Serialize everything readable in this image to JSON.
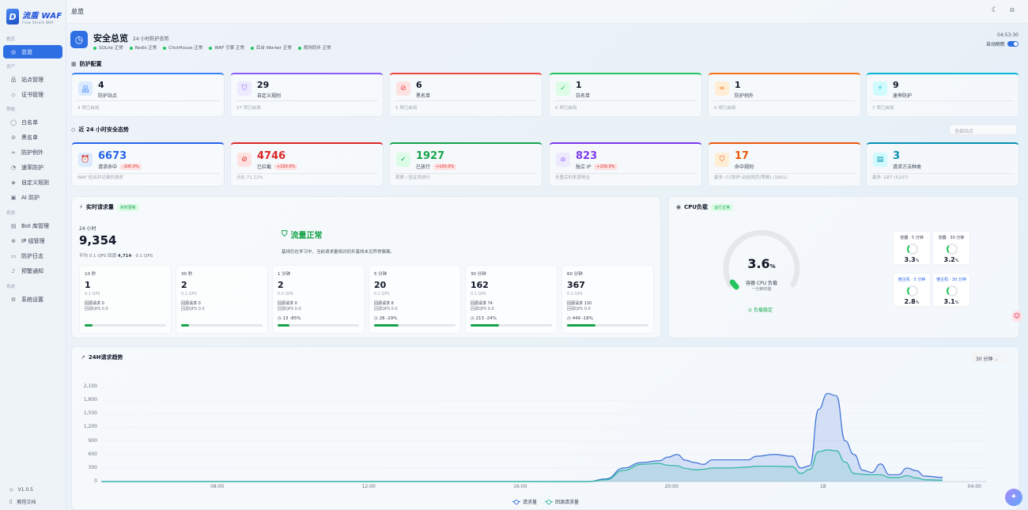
{
  "app": {
    "logo_title": "流盾 WAF",
    "logo_sub": "Flow Shield WAF",
    "version": "V1.0.5",
    "docs": "教程文档"
  },
  "nav": {
    "sections": [
      {
        "label": "概览"
      },
      {
        "label": "资产"
      },
      {
        "label": "策略"
      },
      {
        "label": "观测"
      },
      {
        "label": "系统"
      }
    ],
    "items": [
      {
        "label": "总览",
        "icon": "grid-icon"
      },
      {
        "label": "站点管理",
        "icon": "sitemap-icon"
      },
      {
        "label": "证书管理",
        "icon": "shield-icon"
      },
      {
        "label": "白名单",
        "icon": "check-circle-icon"
      },
      {
        "label": "黑名单",
        "icon": "ban-icon"
      },
      {
        "label": "防护例外",
        "icon": "link-icon"
      },
      {
        "label": "速率防护",
        "icon": "gauge-icon"
      },
      {
        "label": "自定义规则",
        "icon": "shield-check-icon"
      },
      {
        "label": "AI 防护",
        "icon": "robot-icon"
      },
      {
        "label": "Bot 库管理",
        "icon": "database-icon"
      },
      {
        "label": "IP 组管理",
        "icon": "globe-icon"
      },
      {
        "label": "防护日志",
        "icon": "file-icon"
      },
      {
        "label": "预警通知",
        "icon": "bell-icon"
      },
      {
        "label": "系统设置",
        "icon": "gear-icon"
      }
    ]
  },
  "topbar": {
    "breadcrumb": "总览"
  },
  "header": {
    "title": "安全总览",
    "subtitle": "24 小时防护态势",
    "statuses": [
      "SQLite 正常",
      "Redis 正常",
      "ClickHouse 正常",
      "WAF 引擎 正常",
      "后台 Worker 正常",
      "规则同步 正常"
    ],
    "clock": "04:53:30",
    "auto_refresh": "自动刷新"
  },
  "config_section": {
    "title": "防护配置",
    "cards": [
      {
        "value": "4",
        "label": "防护站点",
        "foot": "4 项已启用",
        "color": "#3b82f6",
        "bg": "#dbeafe",
        "icon": "sitemap-icon"
      },
      {
        "value": "29",
        "label": "自定义规则",
        "foot": "27 项已启用",
        "color": "#8b5cf6",
        "bg": "#ede9fe",
        "icon": "shield-check-icon"
      },
      {
        "value": "6",
        "label": "黑名单",
        "foot": "5 项已启用",
        "color": "#ef4444",
        "bg": "#fee2e2",
        "icon": "ban-icon"
      },
      {
        "value": "1",
        "label": "白名单",
        "foot": "0 项已启用",
        "color": "#22c55e",
        "bg": "#dcfce7",
        "icon": "check-circle-icon"
      },
      {
        "value": "1",
        "label": "防护例外",
        "foot": "0 项已启用",
        "color": "#f97316",
        "bg": "#ffedd5",
        "icon": "link-icon"
      },
      {
        "value": "9",
        "label": "速率防护",
        "foot": "7 项已启用",
        "color": "#06b6d4",
        "bg": "#cffafe",
        "icon": "bolt-icon"
      }
    ]
  },
  "trend_section": {
    "title": "近 24 小时安全态势",
    "select_placeholder": "全部站点",
    "cards": [
      {
        "value": "6673",
        "label": "请求命中",
        "badge": "-100.0%",
        "foot": "WAF 检出并记录的请求",
        "color": "#2563eb",
        "bg": "#dbeafe",
        "icon": "alarm-icon"
      },
      {
        "value": "4746",
        "label": "已拦截",
        "badge": "+100.0%",
        "foot": "占比 71.12%",
        "color": "#dc2626",
        "bg": "#fee2e2",
        "icon": "ban-icon"
      },
      {
        "value": "1927",
        "label": "已放行",
        "badge": "+100.0%",
        "foot": "观察 / 验证类放行",
        "color": "#16a34a",
        "bg": "#dcfce7",
        "icon": "check-circle-icon"
      },
      {
        "value": "823",
        "label": "独立 IP",
        "badge": "+100.0%",
        "foot": "去重后的来源地址",
        "color": "#7c3aed",
        "bg": "#ede9fe",
        "icon": "user-icon"
      },
      {
        "value": "17",
        "label": "命中规则",
        "badge": "",
        "foot": "最多: CC防护-动态网页(策略) (1801)",
        "color": "#ea580c",
        "bg": "#ffedd5",
        "icon": "shield-icon"
      },
      {
        "value": "3",
        "label": "请求方法种类",
        "badge": "",
        "foot": "最多: GET (5207)",
        "color": "#0891b2",
        "bg": "#cffafe",
        "icon": "doc-icon"
      }
    ]
  },
  "realtime": {
    "title": "实时请求量",
    "tag": "实时更新",
    "period": "24 小时",
    "total": "9,354",
    "qps": "平均 0.1 QPS",
    "origin_label": "回源",
    "origin_value": "4,714",
    "origin_qps": "· 0.1 QPS",
    "status_title": "流量正常",
    "status_desc": "基线仍在学习中，当前请求量相对初步基线未见异常偏离。",
    "windows": [
      {
        "label": "10 秒",
        "value": "1",
        "qps": "0.1 QPS",
        "backend": "回源请求 0",
        "backend_qps": "回源QPS 0.0",
        "delta": "",
        "fill": 0.1
      },
      {
        "label": "30 秒",
        "value": "2",
        "qps": "0.1 QPS",
        "backend": "回源请求 0",
        "backend_qps": "回源QPS 0.0",
        "delta": "",
        "fill": 0.1
      },
      {
        "label": "1 分钟",
        "value": "2",
        "qps": "0.0 QPS",
        "backend": "回源请求 0",
        "backend_qps": "回源QPS 0.0",
        "delta": "13 -85%",
        "fill": 0.15
      },
      {
        "label": "5 分钟",
        "value": "20",
        "qps": "0.1 QPS",
        "backend": "回源请求 8",
        "backend_qps": "回源QPS 0.0",
        "delta": "28 -29%",
        "fill": 0.3
      },
      {
        "label": "30 分钟",
        "value": "162",
        "qps": "0.1 QPS",
        "backend": "回源请求 74",
        "backend_qps": "回源QPS 0.0",
        "delta": "213 -24%",
        "fill": 0.35
      },
      {
        "label": "60 分钟",
        "value": "367",
        "qps": "0.1 QPS",
        "backend": "回源请求 130",
        "backend_qps": "回源QPS 0.0",
        "delta": "449 -18%",
        "fill": 0.35
      }
    ]
  },
  "cpu": {
    "title": "CPU负载",
    "tag": "运行正常",
    "value": "3.6",
    "unit": "%",
    "label": "容器 CPU 负载",
    "sublabel": "一分钟均值",
    "status": "负载稳定",
    "percent": 3.6,
    "minis": [
      {
        "label": "容器 · 5 分钟",
        "value": "3.3",
        "unit": "%",
        "blue": false
      },
      {
        "label": "容器 · 30 分钟",
        "value": "3.2",
        "unit": "%",
        "blue": false
      },
      {
        "label": "宿主机 · 5 分钟",
        "value": "2.8",
        "unit": "%",
        "blue": true
      },
      {
        "label": "宿主机 · 30 分钟",
        "value": "3.1",
        "unit": "%",
        "blue": true
      }
    ]
  },
  "chart_section": {
    "title": "24H请求趋势",
    "interval": "30 分钟"
  },
  "chart_data": {
    "type": "area",
    "title": "24H请求趋势",
    "y_ticks": [
      "2,100",
      "1,800",
      "1,500",
      "1,200",
      "900",
      "600",
      "300",
      "0"
    ],
    "ylim": [
      0,
      2100
    ],
    "x_ticks": [
      "08:00",
      "12:00",
      "16:00",
      "20:00",
      "18",
      "04:00"
    ],
    "grid": true,
    "legend_placement": "bottom-center",
    "series": [
      {
        "name": "请求量",
        "color": "#3b6fd6",
        "points": [
          [
            0,
            0
          ],
          [
            20,
            0
          ],
          [
            40,
            0
          ],
          [
            55,
            0
          ],
          [
            57,
            60
          ],
          [
            59,
            300
          ],
          [
            61,
            420
          ],
          [
            63,
            460
          ],
          [
            64,
            540
          ],
          [
            65,
            600
          ],
          [
            66,
            470
          ],
          [
            67,
            420
          ],
          [
            68,
            380
          ],
          [
            69,
            480
          ],
          [
            71,
            480
          ],
          [
            73,
            480
          ],
          [
            74,
            560
          ],
          [
            76,
            600
          ],
          [
            78,
            560
          ],
          [
            79,
            300
          ],
          [
            80,
            350
          ],
          [
            81,
            1600
          ],
          [
            82,
            1950
          ],
          [
            83,
            1900
          ],
          [
            84,
            900
          ],
          [
            85,
            600
          ],
          [
            86,
            250
          ],
          [
            87,
            200
          ],
          [
            88,
            390
          ],
          [
            89,
            150
          ],
          [
            90,
            150
          ],
          [
            91,
            300
          ],
          [
            92,
            240
          ],
          [
            93,
            120
          ],
          [
            95,
            90
          ]
        ]
      },
      {
        "name": "回源请求量",
        "color": "#2cb5a0",
        "points": [
          [
            0,
            0
          ],
          [
            20,
            0
          ],
          [
            40,
            0
          ],
          [
            55,
            0
          ],
          [
            57,
            40
          ],
          [
            59,
            250
          ],
          [
            61,
            380
          ],
          [
            63,
            400
          ],
          [
            64,
            360
          ],
          [
            65,
            350
          ],
          [
            66,
            290
          ],
          [
            67,
            260
          ],
          [
            68,
            270
          ],
          [
            69,
            300
          ],
          [
            71,
            300
          ],
          [
            73,
            320
          ],
          [
            74,
            340
          ],
          [
            76,
            340
          ],
          [
            78,
            330
          ],
          [
            79,
            180
          ],
          [
            80,
            270
          ],
          [
            81,
            660
          ],
          [
            82,
            700
          ],
          [
            83,
            680
          ],
          [
            84,
            430
          ],
          [
            85,
            180
          ],
          [
            86,
            160
          ],
          [
            87,
            150
          ],
          [
            88,
            150
          ],
          [
            89,
            90
          ],
          [
            90,
            90
          ],
          [
            91,
            130
          ],
          [
            92,
            80
          ],
          [
            93,
            40
          ],
          [
            95,
            30
          ]
        ]
      }
    ]
  }
}
